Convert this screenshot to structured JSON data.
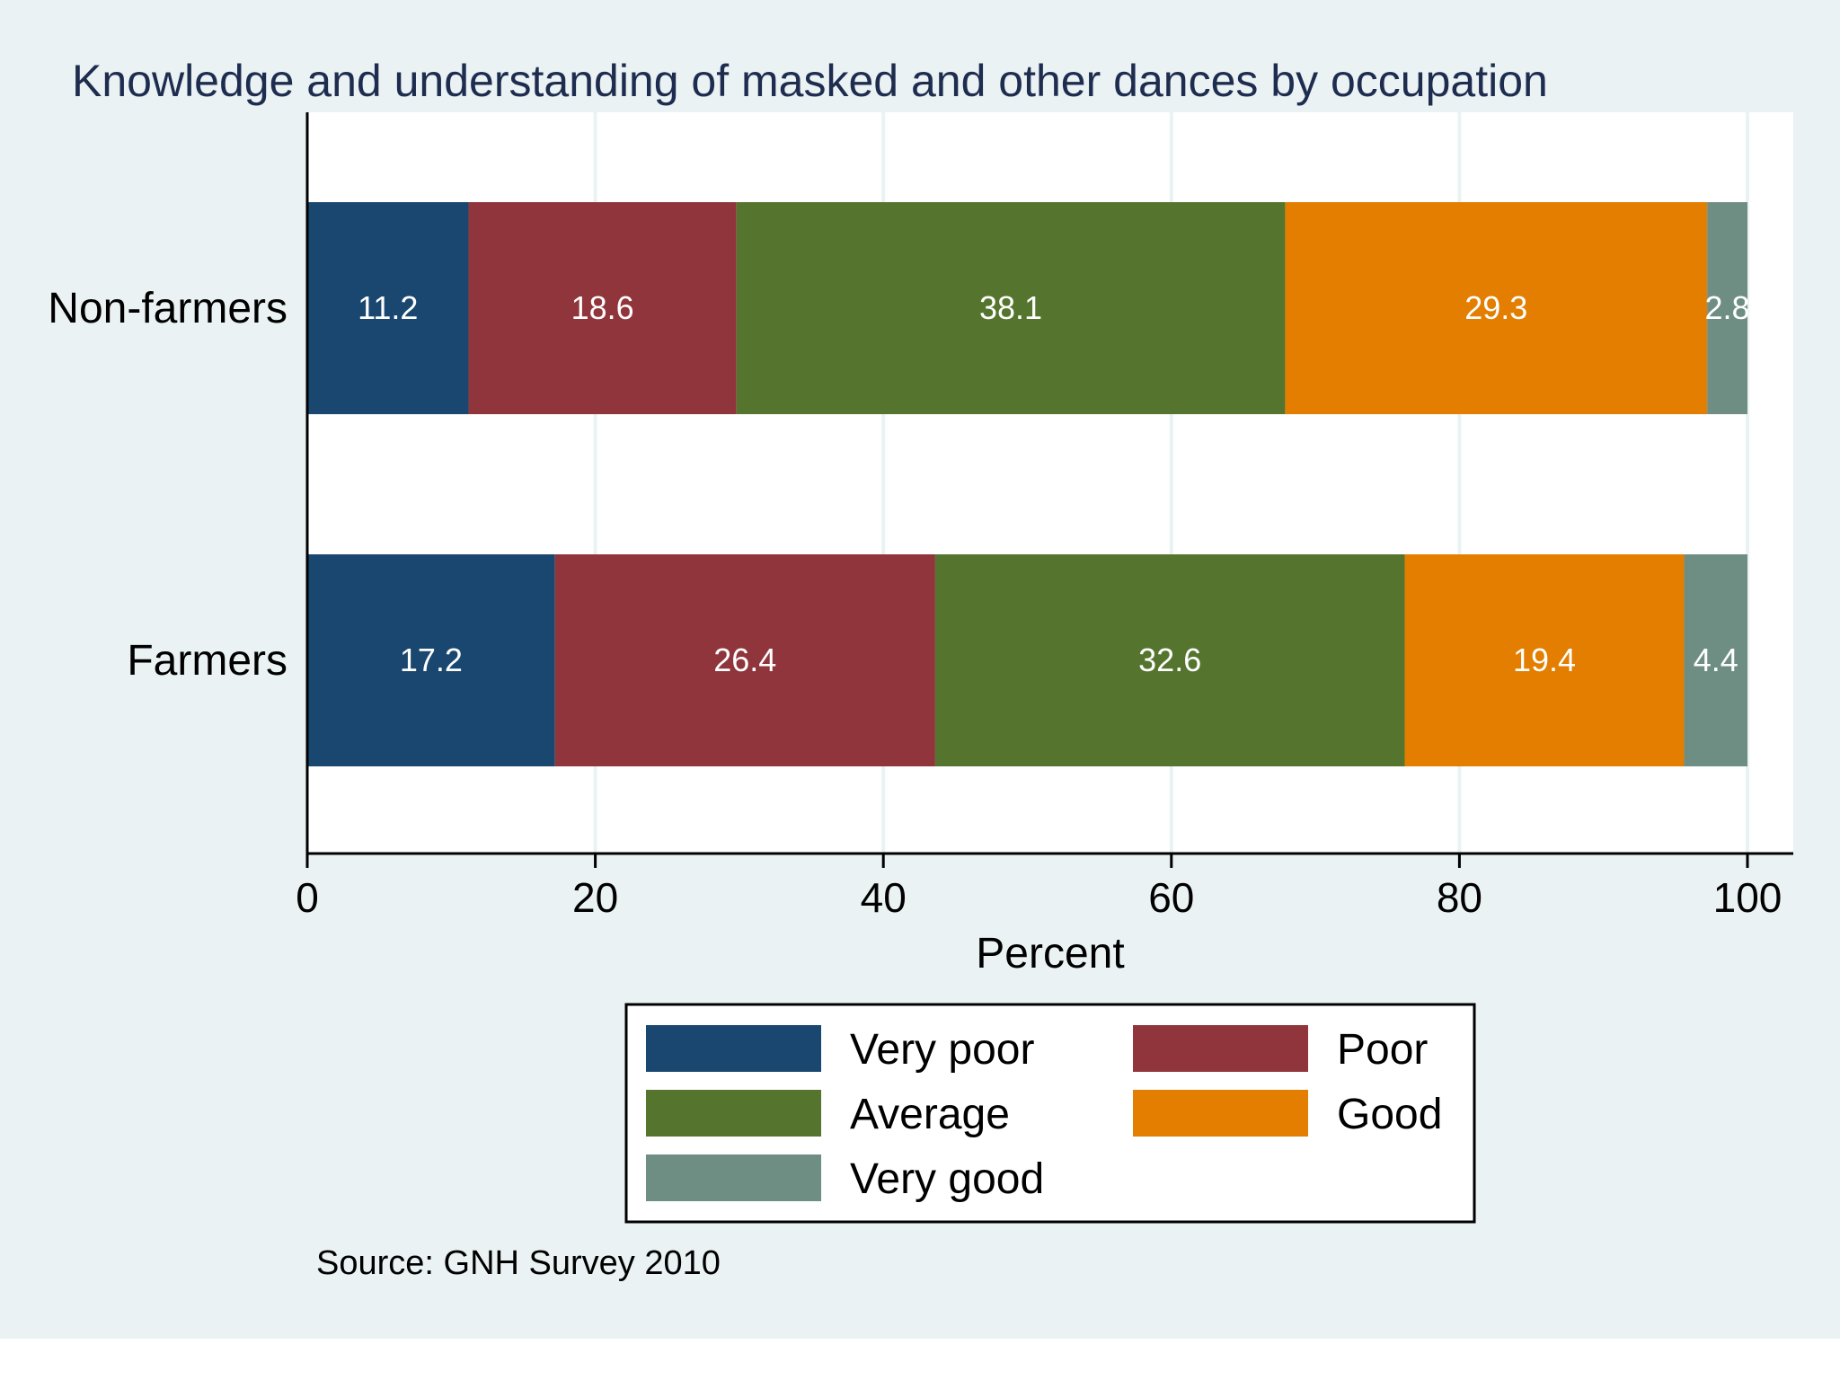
{
  "chart_data": {
    "type": "bar",
    "orientation": "horizontal",
    "stacked": true,
    "title": "Knowledge and understanding of masked and other dances by occupation",
    "xlabel": "Percent",
    "ylabel": "",
    "xlim": [
      0,
      100
    ],
    "xticks": [
      "0",
      "20",
      "40",
      "60",
      "80",
      "100"
    ],
    "categories": [
      "Non-farmers",
      "Farmers"
    ],
    "series": [
      {
        "name": "Very poor",
        "color": "#1a476f",
        "values": [
          11.2,
          17.2
        ],
        "labels": [
          "11.2",
          "17.2"
        ]
      },
      {
        "name": "Poor",
        "color": "#90353b",
        "values": [
          18.6,
          26.4
        ],
        "labels": [
          "18.6",
          "26.4"
        ]
      },
      {
        "name": "Average",
        "color": "#55752f",
        "values": [
          38.1,
          32.6
        ],
        "labels": [
          "38.1",
          "32.6"
        ]
      },
      {
        "name": "Good",
        "color": "#e37e00",
        "values": [
          29.3,
          19.4
        ],
        "labels": [
          "29.3",
          "19.4"
        ]
      },
      {
        "name": "Very good",
        "color": "#6e8e84",
        "values": [
          2.8,
          4.4
        ],
        "labels": [
          "2.8",
          "4.4"
        ]
      }
    ],
    "grid": true,
    "legend_position": "bottom",
    "note": "Source: GNH Survey 2010"
  },
  "colors": {
    "outer_background": "#eaf2f3",
    "plot_background": "#ffffff",
    "title": "#1e2c4f",
    "text": "#000000",
    "gridline": "#eaf2f3",
    "value_label": "#ffffff"
  }
}
